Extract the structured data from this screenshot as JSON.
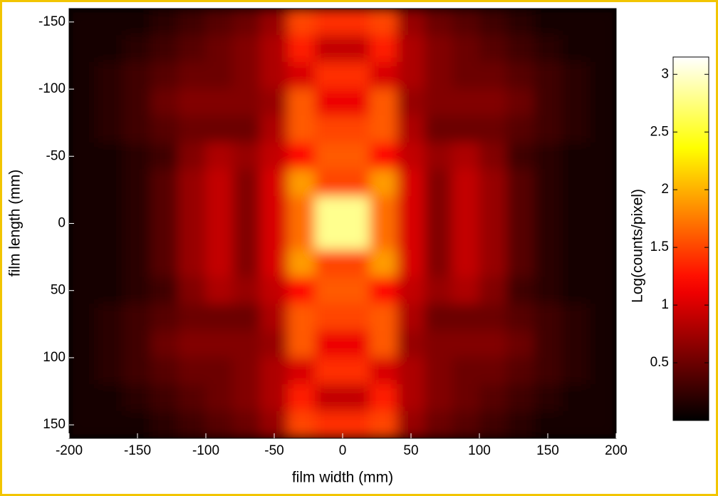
{
  "chart_data": {
    "type": "heatmap",
    "x_label": "film width (mm)",
    "y_label": "film length (mm)",
    "colorbar_label": "Log(counts/pixel)",
    "colormap": "hot",
    "clim": [
      0,
      3.15
    ],
    "cticks": [
      0.5,
      1,
      1.5,
      2,
      2.5,
      3
    ],
    "xlim": [
      -200,
      200
    ],
    "ylim": [
      -160,
      160
    ],
    "y_reversed": true,
    "xticks": [
      -200,
      -150,
      -100,
      -50,
      0,
      50,
      100,
      150,
      200
    ],
    "yticks": [
      -150,
      -100,
      -50,
      0,
      50,
      100,
      150
    ],
    "x": [
      -190,
      -170,
      -150,
      -130,
      -110,
      -90,
      -70,
      -50,
      -30,
      -10,
      10,
      30,
      50,
      70,
      90,
      110,
      130,
      150,
      170,
      190
    ],
    "y": [
      -150,
      -130,
      -110,
      -90,
      -70,
      -50,
      -30,
      -10,
      10,
      30,
      50,
      70,
      90,
      110,
      130,
      150
    ],
    "z": [
      [
        0.1,
        0.1,
        0.1,
        0.2,
        0.3,
        0.4,
        0.5,
        0.7,
        1.5,
        1.4,
        1.4,
        1.5,
        0.7,
        0.5,
        0.4,
        0.3,
        0.2,
        0.1,
        0.1,
        0.1
      ],
      [
        0.1,
        0.1,
        0.2,
        0.3,
        0.4,
        0.5,
        0.6,
        0.8,
        1.3,
        0.9,
        0.9,
        1.3,
        0.8,
        0.6,
        0.5,
        0.4,
        0.3,
        0.2,
        0.1,
        0.1
      ],
      [
        0.1,
        0.2,
        0.3,
        0.4,
        0.5,
        0.5,
        0.6,
        0.8,
        1.0,
        1.4,
        1.4,
        1.0,
        0.8,
        0.6,
        0.5,
        0.5,
        0.4,
        0.3,
        0.2,
        0.1
      ],
      [
        0.1,
        0.2,
        0.3,
        0.5,
        0.6,
        0.6,
        0.6,
        0.7,
        1.6,
        1.1,
        1.1,
        1.6,
        0.7,
        0.6,
        0.6,
        0.6,
        0.5,
        0.3,
        0.2,
        0.1
      ],
      [
        0.1,
        0.2,
        0.3,
        0.4,
        0.5,
        0.5,
        0.5,
        0.8,
        1.6,
        1.5,
        1.5,
        1.6,
        0.8,
        0.5,
        0.5,
        0.5,
        0.4,
        0.3,
        0.2,
        0.1
      ],
      [
        0.1,
        0.1,
        0.2,
        0.3,
        0.6,
        0.8,
        0.7,
        0.9,
        1.2,
        1.6,
        1.6,
        1.2,
        0.9,
        0.7,
        0.8,
        0.6,
        0.3,
        0.2,
        0.1,
        0.1
      ],
      [
        0.1,
        0.1,
        0.2,
        0.4,
        0.7,
        0.9,
        0.6,
        1.0,
        1.9,
        1.5,
        1.5,
        1.9,
        1.0,
        0.6,
        0.9,
        0.7,
        0.4,
        0.2,
        0.1,
        0.1
      ],
      [
        0.1,
        0.1,
        0.2,
        0.4,
        0.7,
        0.9,
        0.6,
        1.0,
        1.7,
        2.8,
        2.8,
        1.7,
        1.0,
        0.6,
        0.9,
        0.7,
        0.4,
        0.2,
        0.1,
        0.1
      ],
      [
        0.1,
        0.1,
        0.2,
        0.4,
        0.7,
        0.9,
        0.6,
        1.0,
        1.7,
        2.8,
        2.8,
        1.7,
        1.0,
        0.6,
        0.9,
        0.7,
        0.4,
        0.2,
        0.1,
        0.1
      ],
      [
        0.1,
        0.1,
        0.2,
        0.4,
        0.7,
        0.9,
        0.6,
        1.0,
        1.9,
        1.5,
        1.5,
        1.9,
        1.0,
        0.6,
        0.9,
        0.7,
        0.4,
        0.2,
        0.1,
        0.1
      ],
      [
        0.1,
        0.1,
        0.2,
        0.3,
        0.6,
        0.8,
        0.7,
        0.9,
        1.2,
        1.6,
        1.6,
        1.2,
        0.9,
        0.7,
        0.8,
        0.6,
        0.3,
        0.2,
        0.1,
        0.1
      ],
      [
        0.1,
        0.2,
        0.3,
        0.4,
        0.5,
        0.5,
        0.5,
        0.8,
        1.6,
        1.5,
        1.5,
        1.6,
        0.8,
        0.5,
        0.5,
        0.5,
        0.4,
        0.3,
        0.2,
        0.1
      ],
      [
        0.1,
        0.2,
        0.3,
        0.5,
        0.6,
        0.6,
        0.6,
        0.7,
        1.6,
        1.1,
        1.1,
        1.6,
        0.7,
        0.6,
        0.6,
        0.6,
        0.5,
        0.3,
        0.2,
        0.1
      ],
      [
        0.1,
        0.2,
        0.3,
        0.4,
        0.5,
        0.5,
        0.6,
        0.8,
        1.0,
        1.4,
        1.4,
        1.0,
        0.8,
        0.6,
        0.5,
        0.5,
        0.4,
        0.3,
        0.2,
        0.1
      ],
      [
        0.1,
        0.1,
        0.2,
        0.3,
        0.4,
        0.5,
        0.6,
        0.8,
        1.3,
        0.9,
        0.9,
        1.3,
        0.8,
        0.6,
        0.5,
        0.4,
        0.3,
        0.2,
        0.1,
        0.1
      ],
      [
        0.1,
        0.1,
        0.1,
        0.2,
        0.3,
        0.4,
        0.5,
        0.7,
        1.5,
        1.4,
        1.4,
        1.5,
        0.7,
        0.5,
        0.4,
        0.3,
        0.2,
        0.1,
        0.1,
        0.1
      ]
    ]
  }
}
